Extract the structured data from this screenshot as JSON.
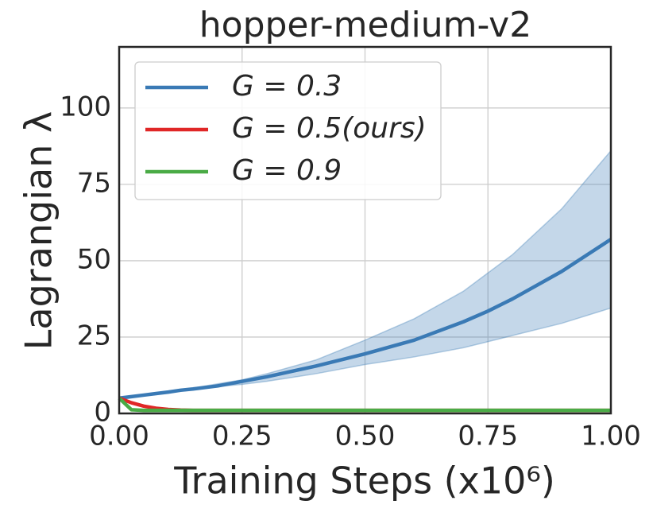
{
  "chart_data": {
    "type": "line",
    "title": "hopper-medium-v2",
    "xlabel": "Training Steps (x10⁶)",
    "ylabel": "Lagrangian λ",
    "x": [
      0,
      0.025,
      0.05,
      0.075,
      0.1,
      0.125,
      0.15,
      0.2,
      0.25,
      0.3,
      0.4,
      0.5,
      0.6,
      0.7,
      0.75,
      0.8,
      0.9,
      1.0
    ],
    "series": [
      {
        "name": "G = 0.3",
        "color": "#3a7ab5",
        "values": [
          5,
          5.5,
          6,
          6.5,
          7,
          7.6,
          8,
          9,
          10.5,
          12,
          15.5,
          19.5,
          24,
          30,
          33.5,
          37.5,
          46.5,
          57
        ],
        "upper": [
          5,
          5.5,
          6,
          6.6,
          7.2,
          7.8,
          8.3,
          9.7,
          11,
          13,
          17.5,
          24,
          31,
          40,
          46,
          52,
          67,
          86
        ],
        "lower": [
          5,
          5.5,
          6,
          6.4,
          6.8,
          7.3,
          7.7,
          8.8,
          9.5,
          10.5,
          13,
          16,
          18.5,
          21.5,
          23.5,
          25.5,
          29.5,
          34.5
        ]
      },
      {
        "name": "G = 0.5(ours)",
        "color": "#e02727",
        "values": [
          5,
          3.5,
          2.4,
          1.7,
          1.3,
          1.1,
          1,
          1,
          1,
          1,
          1,
          1,
          1,
          1,
          1,
          1,
          1,
          1
        ]
      },
      {
        "name": "G = 0.9",
        "color": "#4aab46",
        "values": [
          5,
          1.2,
          1,
          1,
          1,
          1,
          1,
          1,
          1,
          1,
          1,
          1,
          1,
          1,
          1,
          1,
          1,
          1
        ]
      }
    ],
    "xlim": [
      0,
      1
    ],
    "xticks": [
      {
        "value": 0,
        "label": "0.00"
      },
      {
        "value": 0.25,
        "label": "0.25"
      },
      {
        "value": 0.5,
        "label": "0.50"
      },
      {
        "value": 0.75,
        "label": "0.75"
      },
      {
        "value": 1,
        "label": "1.00"
      }
    ],
    "ylim": [
      0,
      120
    ],
    "yticks": [
      0,
      25,
      50,
      75,
      100
    ],
    "grid": true,
    "legend": "upper left"
  }
}
